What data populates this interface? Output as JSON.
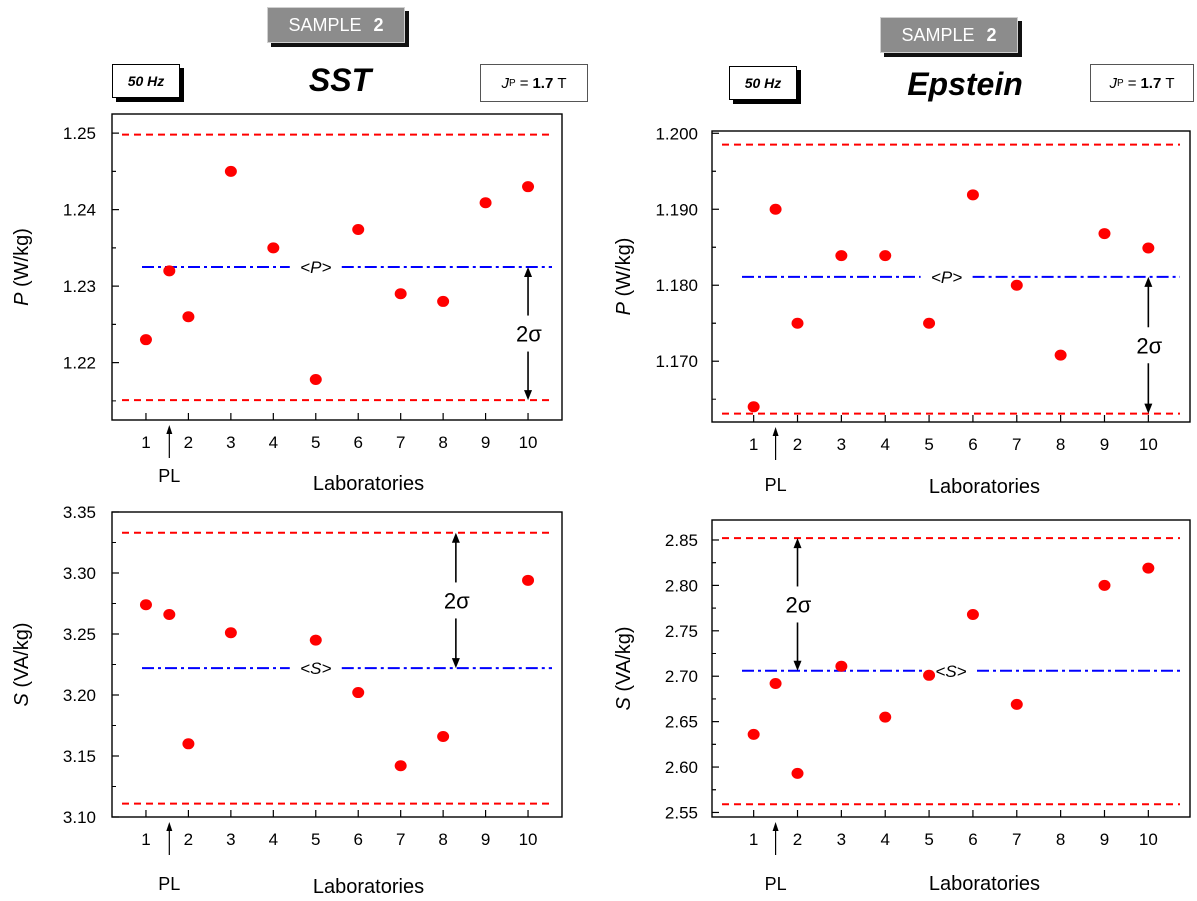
{
  "header": {
    "left": {
      "sample_label": "SAMPLE",
      "sample_number": "2",
      "frequency": "50 Hz",
      "method": "SST",
      "polarization_symbol": "J",
      "polarization_subscript": "P",
      "polarization_equals": "=",
      "polarization_value": "1.7",
      "polarization_unit": "T"
    },
    "right": {
      "sample_label": "SAMPLE",
      "sample_number": "2",
      "frequency": "50 Hz",
      "method": "Epstein",
      "polarization_symbol": "J",
      "polarization_subscript": "P",
      "polarization_equals": "=",
      "polarization_value": "1.7",
      "polarization_unit": "T"
    }
  },
  "colors": {
    "points": "#ff0000",
    "limits": "#ff0000",
    "mean": "#0000ff",
    "axes": "#000000"
  },
  "chart_data": [
    {
      "id": "sst-p",
      "type": "scatter",
      "ylabel_symbol": "P",
      "ylabel_unit": "(W/kg)",
      "xlabel": "Laboratories",
      "xticks": [
        1,
        2,
        3,
        4,
        5,
        6,
        7,
        8,
        9,
        10
      ],
      "xlim": [
        0.2,
        10.8
      ],
      "ylim": [
        1.2125,
        1.2525
      ],
      "yticks": [
        1.22,
        1.23,
        1.24,
        1.25
      ],
      "ytick_labels": [
        "1.22",
        "1.23",
        "1.24",
        "1.25"
      ],
      "points": [
        {
          "x": 1,
          "y": 1.223
        },
        {
          "x": 1.55,
          "y": 1.232
        },
        {
          "x": 2,
          "y": 1.226
        },
        {
          "x": 3,
          "y": 1.245
        },
        {
          "x": 4,
          "y": 1.235
        },
        {
          "x": 5,
          "y": 1.2178
        },
        {
          "x": 6,
          "y": 1.2374
        },
        {
          "x": 7,
          "y": 1.229
        },
        {
          "x": 8,
          "y": 1.228
        },
        {
          "x": 9,
          "y": 1.2409
        },
        {
          "x": 10,
          "y": 1.243
        }
      ],
      "upper_limit": 1.2498,
      "lower_limit": 1.2151,
      "mean": 1.2325,
      "mean_label": "<P>",
      "mean_label_x": 5,
      "sigma_label": "2σ",
      "sigma_arrow_x": 10,
      "sigma_arrow_from": "mean",
      "sigma_arrow_to": "lower",
      "pl_label": "PL",
      "pl_x": 1.55
    },
    {
      "id": "epstein-p",
      "type": "scatter",
      "ylabel_symbol": "P",
      "ylabel_unit": "(W/kg)",
      "xlabel": "Laboratories",
      "xticks": [
        1,
        2,
        3,
        4,
        5,
        6,
        7,
        8,
        9,
        10
      ],
      "xlim": [
        0.05,
        10.95
      ],
      "ylim": [
        1.162,
        1.2003
      ],
      "yticks": [
        1.17,
        1.18,
        1.19,
        1.2
      ],
      "ytick_labels": [
        "1.170",
        "1.180",
        "1.190",
        "1.200"
      ],
      "points": [
        {
          "x": 1,
          "y": 1.164
        },
        {
          "x": 1.5,
          "y": 1.19
        },
        {
          "x": 2,
          "y": 1.175
        },
        {
          "x": 3,
          "y": 1.1839
        },
        {
          "x": 4,
          "y": 1.1839
        },
        {
          "x": 5,
          "y": 1.175
        },
        {
          "x": 6,
          "y": 1.1919
        },
        {
          "x": 7,
          "y": 1.18
        },
        {
          "x": 8,
          "y": 1.1708
        },
        {
          "x": 9,
          "y": 1.1868
        },
        {
          "x": 10,
          "y": 1.1849
        }
      ],
      "upper_limit": 1.1985,
      "lower_limit": 1.1631,
      "mean": 1.1811,
      "mean_label": "<P>",
      "mean_label_x": 5.4,
      "sigma_label": "2σ",
      "sigma_arrow_x": 10,
      "sigma_arrow_from": "mean",
      "sigma_arrow_to": "lower",
      "pl_label": "PL",
      "pl_x": 1.5
    },
    {
      "id": "sst-s",
      "type": "scatter",
      "ylabel_symbol": "S",
      "ylabel_unit": "(VA/kg)",
      "xlabel": "Laboratories",
      "xticks": [
        1,
        2,
        3,
        4,
        5,
        6,
        7,
        8,
        9,
        10
      ],
      "xlim": [
        0.2,
        10.8
      ],
      "ylim": [
        3.1,
        3.35
      ],
      "yticks": [
        3.1,
        3.15,
        3.2,
        3.25,
        3.3,
        3.35
      ],
      "ytick_labels": [
        "3.10",
        "3.15",
        "3.20",
        "3.25",
        "3.30",
        "3.35"
      ],
      "points": [
        {
          "x": 1,
          "y": 3.274
        },
        {
          "x": 1.55,
          "y": 3.266
        },
        {
          "x": 2,
          "y": 3.16
        },
        {
          "x": 3,
          "y": 3.251
        },
        {
          "x": 5,
          "y": 3.245
        },
        {
          "x": 6,
          "y": 3.202
        },
        {
          "x": 7,
          "y": 3.142
        },
        {
          "x": 8,
          "y": 3.166
        },
        {
          "x": 10,
          "y": 3.294
        }
      ],
      "upper_limit": 3.333,
      "lower_limit": 3.111,
      "mean": 3.222,
      "mean_label": "<S>",
      "mean_label_x": 5,
      "sigma_label": "2σ",
      "sigma_arrow_x": 8.3,
      "sigma_arrow_from": "mean",
      "sigma_arrow_to": "upper",
      "pl_label": "PL",
      "pl_x": 1.55
    },
    {
      "id": "epstein-s",
      "type": "scatter",
      "ylabel_symbol": "S",
      "ylabel_unit": "(VA/kg)",
      "xlabel": "Laboratories",
      "xticks": [
        1,
        2,
        3,
        4,
        5,
        6,
        7,
        8,
        9,
        10
      ],
      "xlim": [
        0.05,
        10.95
      ],
      "ylim": [
        2.545,
        2.872
      ],
      "yticks": [
        2.55,
        2.6,
        2.65,
        2.7,
        2.75,
        2.8,
        2.85
      ],
      "ytick_labels": [
        "2.55",
        "2.60",
        "2.65",
        "2.70",
        "2.75",
        "2.80",
        "2.85"
      ],
      "points": [
        {
          "x": 1,
          "y": 2.636
        },
        {
          "x": 1.5,
          "y": 2.692
        },
        {
          "x": 2,
          "y": 2.593
        },
        {
          "x": 3,
          "y": 2.711
        },
        {
          "x": 4,
          "y": 2.655
        },
        {
          "x": 5,
          "y": 2.701
        },
        {
          "x": 6,
          "y": 2.768
        },
        {
          "x": 7,
          "y": 2.669
        },
        {
          "x": 9,
          "y": 2.8
        },
        {
          "x": 10,
          "y": 2.819
        }
      ],
      "upper_limit": 2.852,
      "lower_limit": 2.559,
      "mean": 2.706,
      "mean_label": "<S>",
      "mean_label_x": 5.5,
      "sigma_label": "2σ",
      "sigma_arrow_x": 2,
      "sigma_arrow_from": "mean",
      "sigma_arrow_to": "upper",
      "pl_label": "PL",
      "pl_x": 1.5
    }
  ]
}
